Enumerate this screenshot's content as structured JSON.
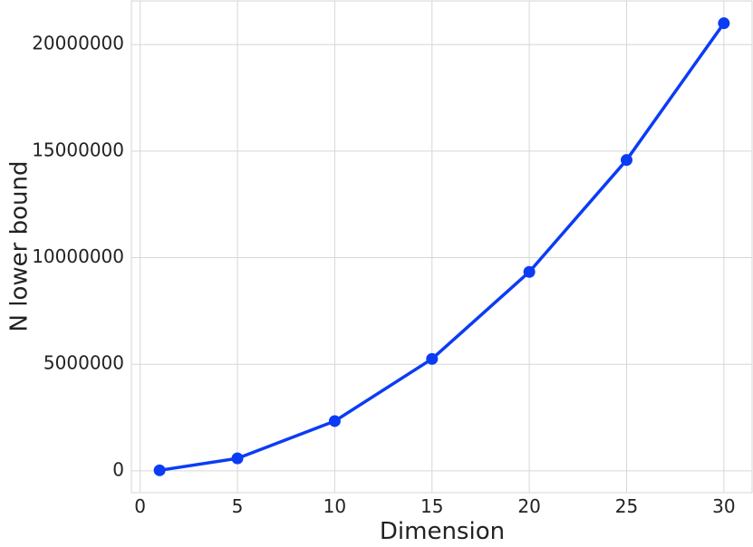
{
  "chart_data": {
    "type": "line",
    "x_label": "Dimension",
    "y_label": "N lower bound",
    "x": [
      1,
      5,
      10,
      15,
      20,
      25,
      30
    ],
    "series": [
      {
        "name": "N lower bound",
        "color": "#0b3cf5",
        "values": [
          23333,
          583333,
          2333333,
          5250000,
          9333333,
          14583333,
          21000000
        ]
      }
    ],
    "xlim": [
      -0.45,
      31.45
    ],
    "ylim": [
      -1025500,
      22048833
    ],
    "xticks": [
      0,
      5,
      10,
      15,
      20,
      25,
      30
    ],
    "yticks": [
      0,
      5000000,
      10000000,
      15000000,
      20000000
    ],
    "grid": true
  }
}
